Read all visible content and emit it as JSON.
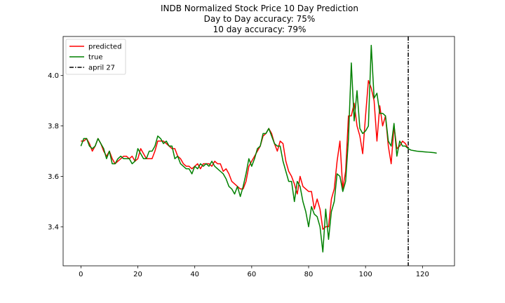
{
  "chart_data": {
    "type": "line",
    "title_lines": [
      "INDB Normalized Stock Price 10 Day Prediction",
      "Day to Day accuracy: 75%",
      "10 day accuracy: 79%"
    ],
    "xlabel": "",
    "ylabel": "",
    "xlim": [
      -6.25,
      131.25
    ],
    "ylim": [
      3.245,
      4.155
    ],
    "xticks": [
      0,
      20,
      40,
      60,
      80,
      100,
      120
    ],
    "yticks": [
      3.4,
      3.6,
      3.8,
      4.0
    ],
    "xtick_labels": [
      "0",
      "20",
      "40",
      "60",
      "80",
      "100",
      "120"
    ],
    "ytick_labels": [
      "3.4",
      "3.6",
      "3.8",
      "4.0"
    ],
    "legend_position": "top-left",
    "series": [
      {
        "name": "predicted",
        "color": "#ff0000",
        "x": [
          0,
          1,
          2,
          3,
          4,
          5,
          6,
          7,
          8,
          9,
          10,
          11,
          12,
          13,
          14,
          15,
          16,
          17,
          18,
          19,
          20,
          21,
          22,
          23,
          24,
          25,
          26,
          27,
          28,
          29,
          30,
          31,
          32,
          33,
          34,
          35,
          36,
          37,
          38,
          39,
          40,
          41,
          42,
          43,
          44,
          45,
          46,
          47,
          48,
          49,
          50,
          51,
          52,
          53,
          54,
          55,
          56,
          57,
          58,
          59,
          60,
          61,
          62,
          63,
          64,
          65,
          66,
          67,
          68,
          69,
          70,
          71,
          72,
          73,
          74,
          75,
          76,
          77,
          78,
          79,
          80,
          81,
          82,
          83,
          84,
          85,
          86,
          87,
          88,
          89,
          90,
          91,
          92,
          93,
          94,
          95,
          96,
          97,
          98,
          99,
          100,
          101,
          102,
          103,
          104,
          105,
          106,
          107,
          108,
          109,
          110,
          111,
          112,
          113,
          114,
          115
        ],
        "y": [
          3.74,
          3.74,
          3.75,
          3.73,
          3.7,
          3.72,
          3.75,
          3.73,
          3.7,
          3.68,
          3.7,
          3.67,
          3.65,
          3.66,
          3.67,
          3.68,
          3.68,
          3.67,
          3.68,
          3.66,
          3.67,
          3.71,
          3.69,
          3.67,
          3.67,
          3.67,
          3.7,
          3.74,
          3.74,
          3.74,
          3.73,
          3.72,
          3.71,
          3.71,
          3.68,
          3.67,
          3.65,
          3.64,
          3.64,
          3.63,
          3.64,
          3.65,
          3.63,
          3.65,
          3.65,
          3.65,
          3.64,
          3.66,
          3.65,
          3.65,
          3.62,
          3.63,
          3.61,
          3.58,
          3.57,
          3.56,
          3.55,
          3.55,
          3.58,
          3.64,
          3.66,
          3.68,
          3.7,
          3.72,
          3.76,
          3.77,
          3.79,
          3.77,
          3.73,
          3.7,
          3.74,
          3.73,
          3.66,
          3.62,
          3.6,
          3.57,
          3.53,
          3.6,
          3.56,
          3.55,
          3.54,
          3.54,
          3.47,
          3.51,
          3.47,
          3.39,
          3.4,
          3.4,
          3.51,
          3.55,
          3.66,
          3.74,
          3.55,
          3.62,
          3.84,
          3.84,
          3.89,
          3.8,
          3.76,
          3.69,
          3.84,
          3.98,
          3.95,
          3.9,
          3.74,
          3.88,
          3.8,
          3.84,
          3.72,
          3.65,
          3.8,
          3.71,
          3.72,
          3.74,
          3.73,
          3.71
        ]
      },
      {
        "name": "true",
        "color": "#008000",
        "x": [
          0,
          1,
          2,
          3,
          4,
          5,
          6,
          7,
          8,
          9,
          10,
          11,
          12,
          13,
          14,
          15,
          16,
          17,
          18,
          19,
          20,
          21,
          22,
          23,
          24,
          25,
          26,
          27,
          28,
          29,
          30,
          31,
          32,
          33,
          34,
          35,
          36,
          37,
          38,
          39,
          40,
          41,
          42,
          43,
          44,
          45,
          46,
          47,
          48,
          49,
          50,
          51,
          52,
          53,
          54,
          55,
          56,
          57,
          58,
          59,
          60,
          61,
          62,
          63,
          64,
          65,
          66,
          67,
          68,
          69,
          70,
          71,
          72,
          73,
          74,
          75,
          76,
          77,
          78,
          79,
          80,
          81,
          82,
          83,
          84,
          85,
          86,
          87,
          88,
          89,
          90,
          91,
          92,
          93,
          94,
          95,
          96,
          97,
          98,
          99,
          100,
          101,
          102,
          103,
          104,
          105,
          106,
          107,
          108,
          109,
          110,
          111,
          112,
          113,
          114,
          115,
          116,
          117,
          118,
          119,
          120,
          121,
          122,
          123,
          124,
          125
        ],
        "y": [
          3.72,
          3.75,
          3.75,
          3.72,
          3.71,
          3.72,
          3.75,
          3.73,
          3.71,
          3.67,
          3.7,
          3.65,
          3.65,
          3.67,
          3.68,
          3.67,
          3.67,
          3.67,
          3.65,
          3.66,
          3.71,
          3.69,
          3.67,
          3.67,
          3.7,
          3.7,
          3.72,
          3.76,
          3.75,
          3.73,
          3.74,
          3.72,
          3.72,
          3.67,
          3.68,
          3.65,
          3.64,
          3.63,
          3.63,
          3.61,
          3.64,
          3.63,
          3.65,
          3.64,
          3.65,
          3.64,
          3.66,
          3.64,
          3.63,
          3.62,
          3.61,
          3.59,
          3.56,
          3.55,
          3.53,
          3.56,
          3.52,
          3.56,
          3.61,
          3.67,
          3.64,
          3.67,
          3.71,
          3.72,
          3.77,
          3.77,
          3.79,
          3.76,
          3.73,
          3.72,
          3.72,
          3.66,
          3.62,
          3.58,
          3.58,
          3.5,
          3.58,
          3.56,
          3.5,
          3.46,
          3.4,
          3.48,
          3.45,
          3.44,
          3.4,
          3.3,
          3.47,
          3.35,
          3.46,
          3.5,
          3.61,
          3.6,
          3.54,
          3.58,
          3.75,
          4.05,
          3.82,
          3.94,
          3.79,
          3.77,
          3.78,
          3.8,
          4.12,
          3.91,
          3.93,
          3.85,
          3.85,
          3.84,
          3.74,
          3.72,
          3.81,
          3.68,
          3.74,
          3.72,
          3.72,
          3.71,
          3.704,
          3.702,
          3.7,
          3.699,
          3.698,
          3.697,
          3.696,
          3.695,
          3.694,
          3.692
        ]
      }
    ],
    "vline": {
      "x": 115,
      "name": "april 27",
      "color": "#000000",
      "style": "dash-dot"
    }
  }
}
